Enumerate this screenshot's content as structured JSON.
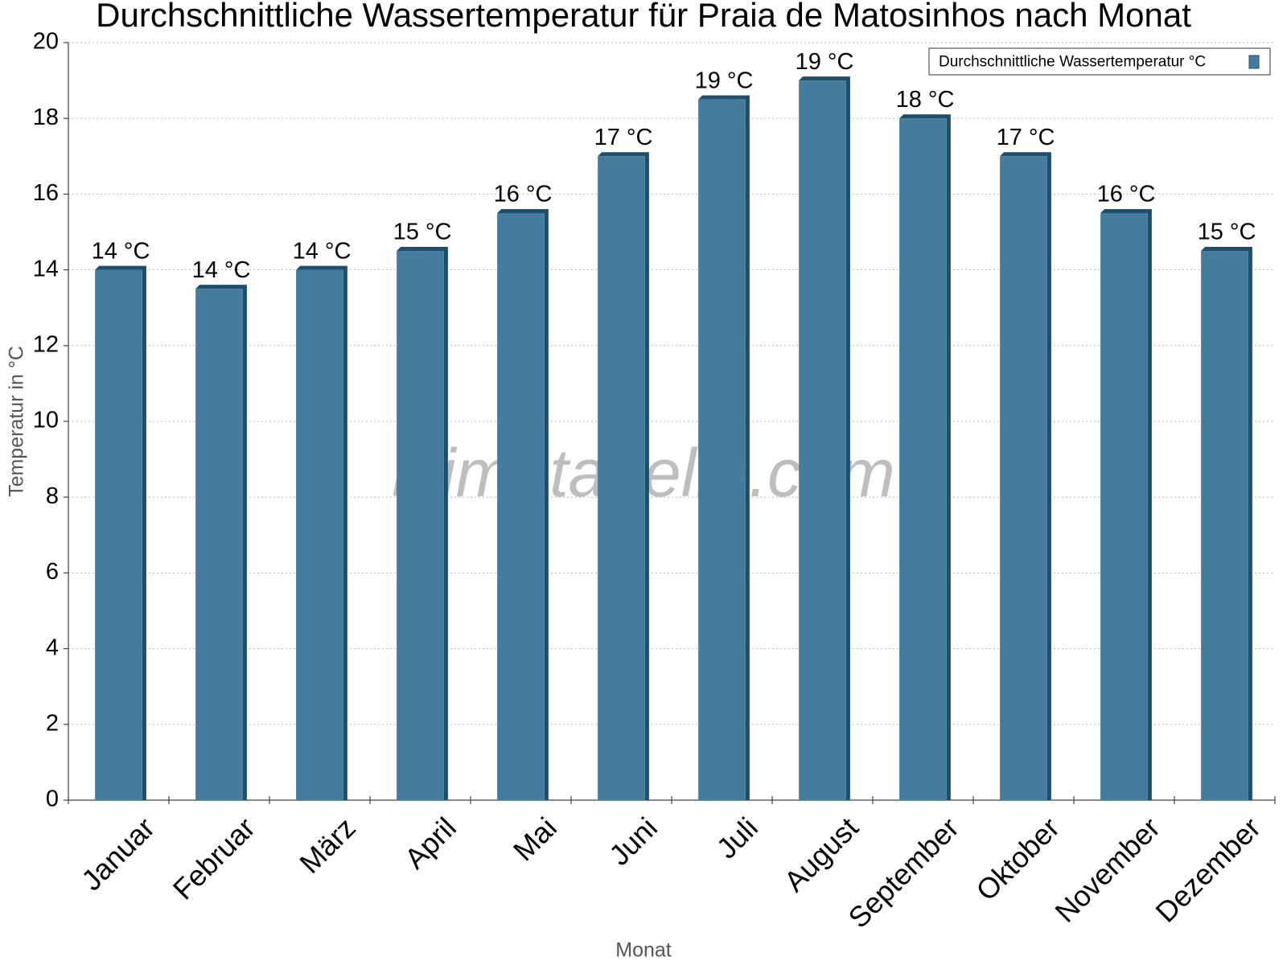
{
  "chart_data": {
    "type": "bar",
    "title": "Durchschnittliche Wassertemperatur für Praia de Matosinhos nach Monat",
    "x_label": "Monat",
    "y_label": "Temperatur in °C",
    "watermark": "klimatabelle.com",
    "categories": [
      "Januar",
      "Februar",
      "März",
      "April",
      "Mai",
      "Juni",
      "Juli",
      "August",
      "September",
      "Oktober",
      "November",
      "Dezember"
    ],
    "series": [
      {
        "name": "Durchschnittliche Wassertemperatur °C",
        "color": "#457b9d",
        "values": [
          14,
          13.5,
          14,
          14.5,
          15.5,
          17,
          18.5,
          19,
          18,
          17,
          15.5,
          14.5
        ],
        "value_labels": [
          "14 °C",
          "14 °C",
          "14 °C",
          "15 °C",
          "16 °C",
          "17 °C",
          "19 °C",
          "19 °C",
          "18 °C",
          "17 °C",
          "16 °C",
          "15 °C"
        ]
      }
    ],
    "ylim": [
      0,
      20
    ],
    "yticks": [
      0,
      2,
      4,
      6,
      8,
      10,
      12,
      14,
      16,
      18,
      20
    ],
    "grid": true,
    "legend": "top-right"
  }
}
